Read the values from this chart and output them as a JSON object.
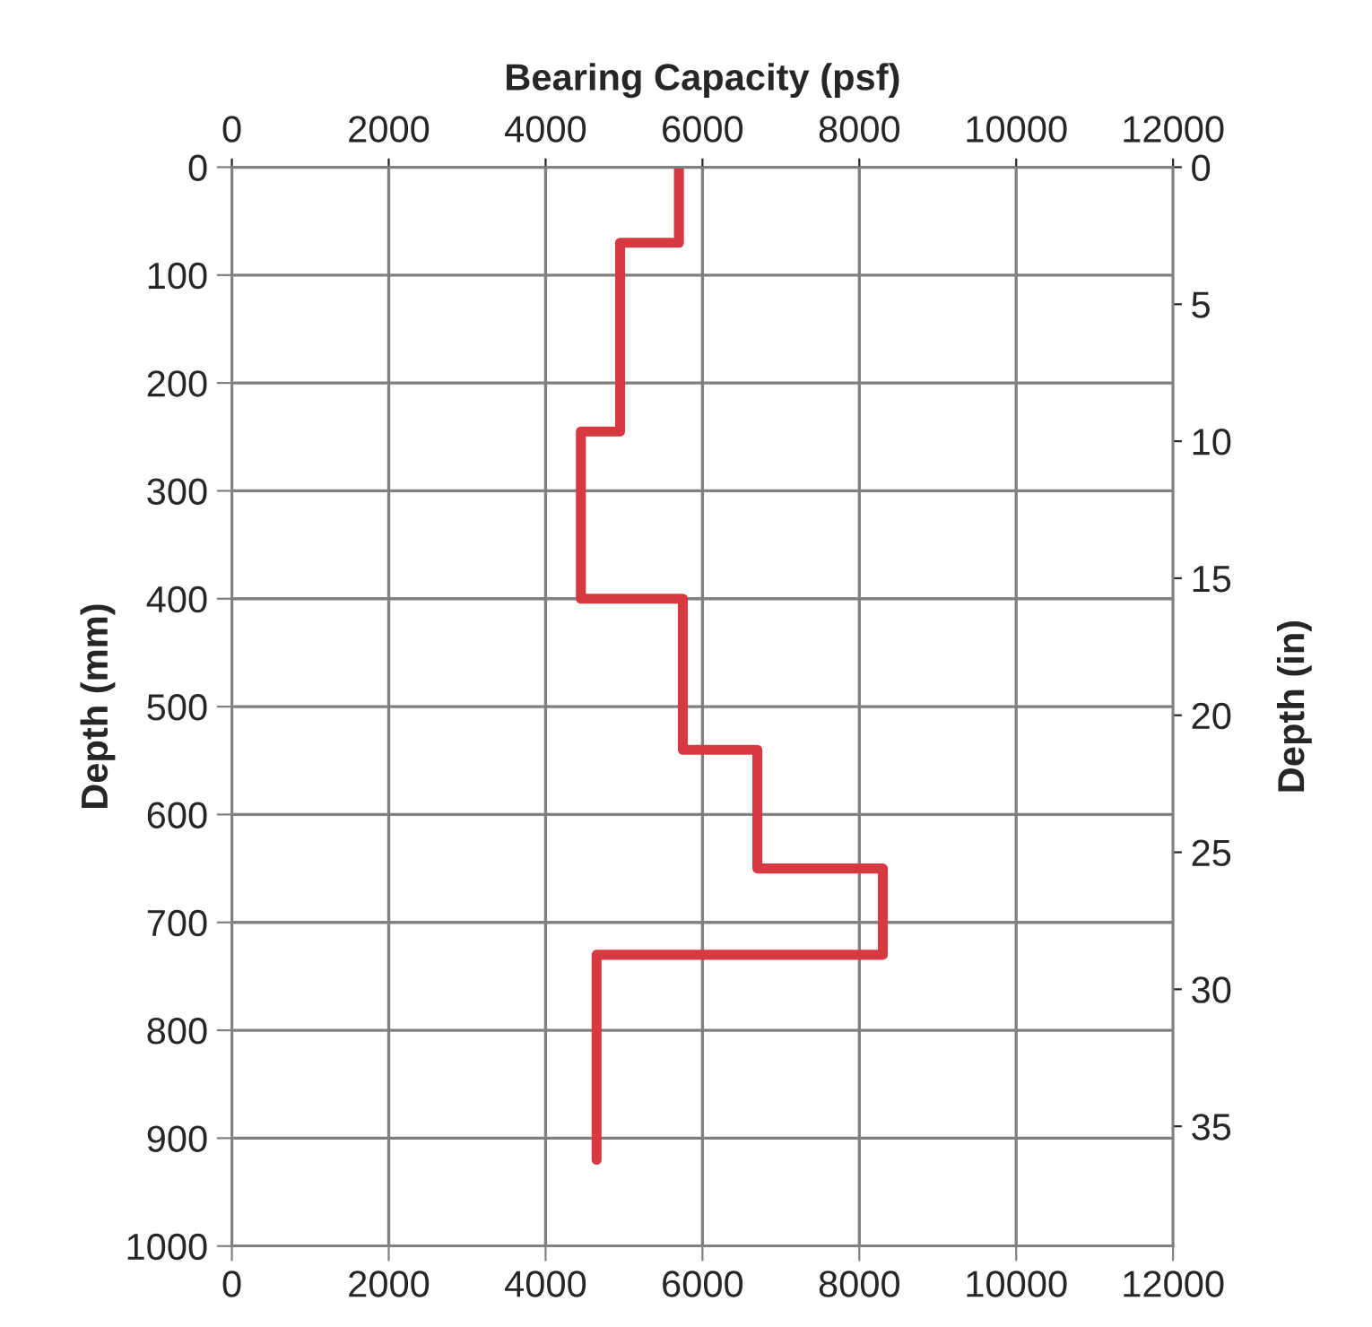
{
  "chart_data": {
    "type": "line",
    "x2label": "Bearing Capacity (psf)",
    "ylabel": "Depth (mm)",
    "y2label": "Depth (in)",
    "series": [
      {
        "color": "#d63a40",
        "x": [
          5700,
          5700,
          4950,
          4950,
          4450,
          4450,
          5750,
          5750,
          6700,
          6700,
          8300,
          8300,
          4650,
          4650
        ],
        "values": [
          0,
          70,
          70,
          245,
          245,
          400,
          400,
          540,
          540,
          650,
          650,
          730,
          730,
          920
        ]
      }
    ],
    "xlim": [
      0,
      12000
    ],
    "xticks": [
      0,
      2000,
      4000,
      6000,
      8000,
      10000,
      12000
    ],
    "x2lim": [
      0,
      12000
    ],
    "x2ticks": [
      0,
      2000,
      4000,
      6000,
      8000,
      10000,
      12000
    ],
    "ylim": [
      1000,
      0
    ],
    "yticks": [
      0,
      100,
      200,
      300,
      400,
      500,
      600,
      700,
      800,
      900,
      1000
    ],
    "y2lim": [
      39.37,
      0
    ],
    "y2ticks": [
      0,
      5,
      10,
      15,
      20,
      25,
      30,
      35
    ],
    "grid": true,
    "marker": "none",
    "line_style": "solid",
    "legend": false
  }
}
